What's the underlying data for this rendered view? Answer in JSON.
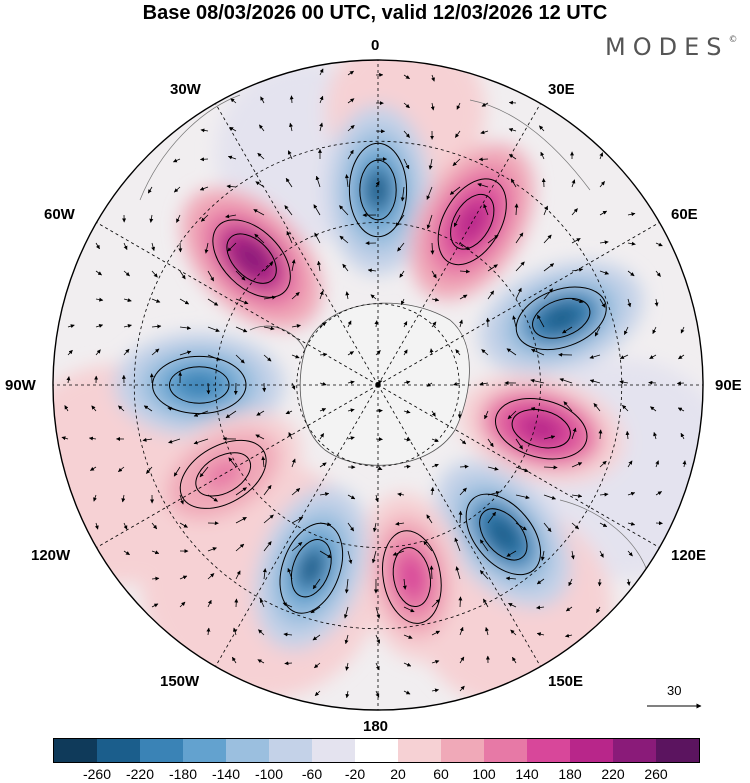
{
  "title": "Base 08/03/2026 00 UTC, valid 12/03/2026 12 UTC",
  "brand": "MODES",
  "brand_mark": "©",
  "longitude_labels": {
    "n": "0",
    "s": "180",
    "e": "90E",
    "w": "90W",
    "ne30": "30E",
    "ne60": "60E",
    "nw30": "30W",
    "nw60": "60W",
    "se120": "120E",
    "se150": "150E",
    "sw120": "120W",
    "sw150": "150W"
  },
  "reference_vector": {
    "value": "30"
  },
  "colorbar": {
    "colors": [
      "#0f3a5a",
      "#1b5e8c",
      "#3a83b6",
      "#63a2cf",
      "#9bbfdf",
      "#c4d2e8",
      "#e4e3ef",
      "#ffffff",
      "#f6d1d4",
      "#f0a9b8",
      "#e779a6",
      "#d8479a",
      "#b8268a",
      "#8a1b79",
      "#5b145f"
    ],
    "tick_labels": [
      "-260",
      "-220",
      "-180",
      "-140",
      "-100",
      "-60",
      "-20",
      "20",
      "60",
      "100",
      "140",
      "180",
      "220",
      "260"
    ]
  },
  "map_data": {
    "projection": "south polar stereographic",
    "field": "height anomaly (m) with wind vectors",
    "anomaly_centers": [
      {
        "sign": "negative",
        "level": -220,
        "at": "near 0"
      },
      {
        "sign": "positive",
        "level": 240,
        "at": "near 45W"
      },
      {
        "sign": "positive",
        "level": 220,
        "at": "near 30E"
      },
      {
        "sign": "negative",
        "level": -240,
        "at": "near 70E"
      },
      {
        "sign": "negative",
        "level": -200,
        "at": "near 90W"
      },
      {
        "sign": "positive",
        "level": 200,
        "at": "near 105E"
      },
      {
        "sign": "negative",
        "level": -240,
        "at": "near 140E"
      },
      {
        "sign": "positive",
        "level": 150,
        "at": "near 170E"
      },
      {
        "sign": "negative",
        "level": -220,
        "at": "near 160W"
      },
      {
        "sign": "positive",
        "level": 120,
        "at": "near 120W"
      }
    ]
  }
}
